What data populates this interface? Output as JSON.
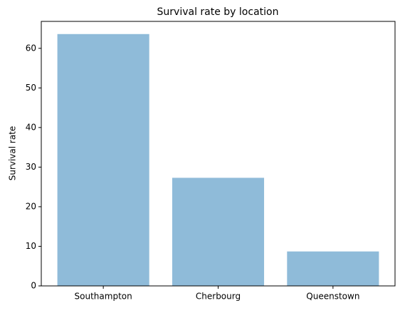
{
  "chart_data": {
    "type": "bar",
    "title": "Survival rate by location",
    "y_label": "Survival rate",
    "categories": [
      "Southampton",
      "Cherbourg",
      "Queenstown"
    ],
    "values": [
      63.6,
      27.3,
      8.7
    ],
    "color": "#8fbbd9",
    "ylim": [
      0,
      66.8
    ],
    "yticks": [
      0,
      10,
      20,
      30,
      40,
      50,
      60
    ]
  }
}
